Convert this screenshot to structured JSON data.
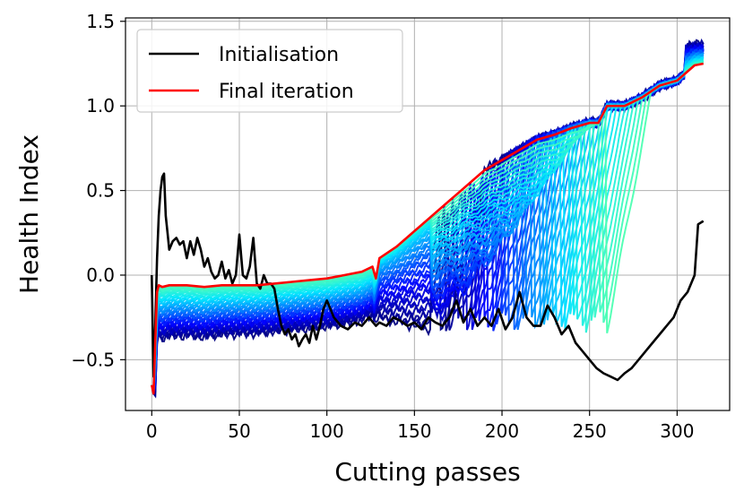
{
  "chart_data": {
    "type": "line",
    "title": "",
    "xlabel": "Cutting passes",
    "ylabel": "Health Index",
    "xlim": [
      -15,
      330
    ],
    "ylim": [
      -0.8,
      1.52
    ],
    "xticks": [
      0,
      50,
      100,
      150,
      200,
      250,
      300
    ],
    "xtick_labels": [
      "0",
      "50",
      "100",
      "150",
      "200",
      "250",
      "300"
    ],
    "yticks": [
      -0.5,
      0.0,
      0.5,
      1.0,
      1.5
    ],
    "ytick_labels": [
      "−0.5",
      "0.0",
      "0.5",
      "1.0",
      "1.5"
    ],
    "grid": true,
    "legend_position": "upper-left",
    "legend": [
      {
        "label": "Initialisation",
        "color": "#000000"
      },
      {
        "label": "Final iteration",
        "color": "#ff0000"
      }
    ],
    "colors": {
      "initialisation": "#000000",
      "final": "#ff0000",
      "iteration_colormap": [
        "#00007f",
        "#0000ff",
        "#007fff",
        "#00e5ff",
        "#4dffb2"
      ]
    },
    "iteration_count": 40,
    "series": [
      {
        "name": "Initialisation",
        "color": "#000000",
        "x": [
          0,
          1,
          2,
          3,
          4,
          5,
          6,
          7,
          8,
          9,
          10,
          12,
          14,
          16,
          18,
          20,
          22,
          24,
          26,
          28,
          30,
          32,
          34,
          36,
          38,
          40,
          42,
          44,
          46,
          48,
          50,
          52,
          54,
          56,
          58,
          60,
          62,
          64,
          66,
          68,
          70,
          72,
          74,
          76,
          78,
          80,
          82,
          84,
          86,
          88,
          90,
          92,
          94,
          96,
          98,
          100,
          104,
          108,
          112,
          116,
          120,
          124,
          128,
          130,
          134,
          138,
          142,
          146,
          150,
          154,
          158,
          162,
          166,
          170,
          174,
          178,
          182,
          186,
          190,
          194,
          198,
          202,
          206,
          210,
          214,
          218,
          222,
          226,
          230,
          234,
          238,
          242,
          246,
          250,
          254,
          258,
          262,
          266,
          270,
          274,
          278,
          282,
          286,
          290,
          294,
          298,
          302,
          306,
          310,
          312,
          315
        ],
        "y": [
          0.0,
          -0.6,
          -0.3,
          0.1,
          0.35,
          0.5,
          0.58,
          0.6,
          0.35,
          0.25,
          0.15,
          0.2,
          0.22,
          0.18,
          0.2,
          0.1,
          0.2,
          0.12,
          0.22,
          0.15,
          0.05,
          0.1,
          0.02,
          -0.02,
          0.0,
          0.08,
          -0.02,
          0.03,
          -0.05,
          0.0,
          0.24,
          0.0,
          -0.02,
          0.05,
          0.22,
          -0.05,
          -0.08,
          0.0,
          -0.05,
          -0.05,
          -0.08,
          -0.2,
          -0.3,
          -0.35,
          -0.32,
          -0.38,
          -0.35,
          -0.42,
          -0.38,
          -0.35,
          -0.4,
          -0.3,
          -0.38,
          -0.3,
          -0.2,
          -0.15,
          -0.25,
          -0.3,
          -0.32,
          -0.28,
          -0.3,
          -0.25,
          -0.3,
          -0.28,
          -0.3,
          -0.25,
          -0.27,
          -0.3,
          -0.28,
          -0.32,
          -0.25,
          -0.28,
          -0.3,
          -0.25,
          -0.15,
          -0.28,
          -0.2,
          -0.3,
          -0.25,
          -0.3,
          -0.2,
          -0.32,
          -0.25,
          -0.1,
          -0.25,
          -0.3,
          -0.3,
          -0.18,
          -0.25,
          -0.35,
          -0.3,
          -0.4,
          -0.45,
          -0.5,
          -0.55,
          -0.58,
          -0.6,
          -0.62,
          -0.58,
          -0.55,
          -0.5,
          -0.45,
          -0.4,
          -0.35,
          -0.3,
          -0.25,
          -0.15,
          -0.1,
          0.0,
          0.3,
          0.32
        ]
      },
      {
        "name": "Final iteration",
        "color": "#ff0000",
        "x": [
          0,
          1,
          2,
          3,
          4,
          6,
          10,
          20,
          30,
          40,
          50,
          60,
          70,
          80,
          90,
          100,
          110,
          120,
          126,
          128,
          130,
          140,
          150,
          160,
          170,
          180,
          190,
          200,
          210,
          220,
          230,
          240,
          250,
          255,
          260,
          270,
          280,
          290,
          300,
          310,
          315
        ],
        "y": [
          -0.65,
          -0.7,
          -0.4,
          -0.1,
          -0.06,
          -0.07,
          -0.06,
          -0.06,
          -0.07,
          -0.06,
          -0.06,
          -0.06,
          -0.05,
          -0.04,
          -0.03,
          -0.02,
          0.0,
          0.02,
          0.05,
          -0.02,
          0.1,
          0.17,
          0.26,
          0.35,
          0.44,
          0.53,
          0.62,
          0.68,
          0.74,
          0.8,
          0.83,
          0.87,
          0.9,
          0.9,
          1.0,
          1.0,
          1.05,
          1.12,
          1.15,
          1.24,
          1.25
        ]
      }
    ]
  }
}
